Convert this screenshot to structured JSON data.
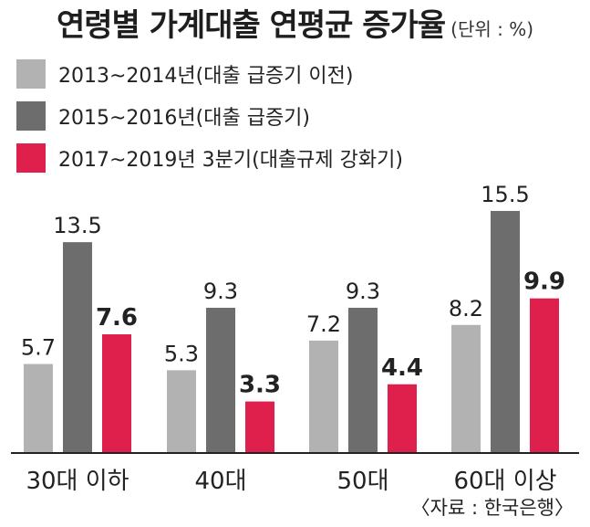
{
  "title": "연령별 가계대출 연평균 증가율",
  "unit": "(단위 : %)",
  "source": "〈자료 : 한국은행〉",
  "colors": {
    "series1": "#b2b2b2",
    "series2": "#6d6d6d",
    "series3": "#e0204c"
  },
  "chart_data": {
    "type": "bar",
    "title": "연령별 가계대출 연평균 증가율",
    "ylabel": "",
    "xlabel": "",
    "unit": "%",
    "categories": [
      "30대 이하",
      "40대",
      "50대",
      "60대 이상"
    ],
    "series": [
      {
        "name": "2013~2014년(대출 급증기 이전)",
        "values": [
          5.7,
          5.3,
          7.2,
          8.2
        ]
      },
      {
        "name": "2015~2016년(대출 급증기)",
        "values": [
          13.5,
          9.3,
          9.3,
          15.5
        ]
      },
      {
        "name": "2017~2019년 3분기(대출규제 강화기)",
        "values": [
          7.6,
          3.3,
          4.4,
          9.9
        ]
      }
    ],
    "ylim": [
      0,
      16
    ],
    "grid": false,
    "legend": "top-left"
  }
}
